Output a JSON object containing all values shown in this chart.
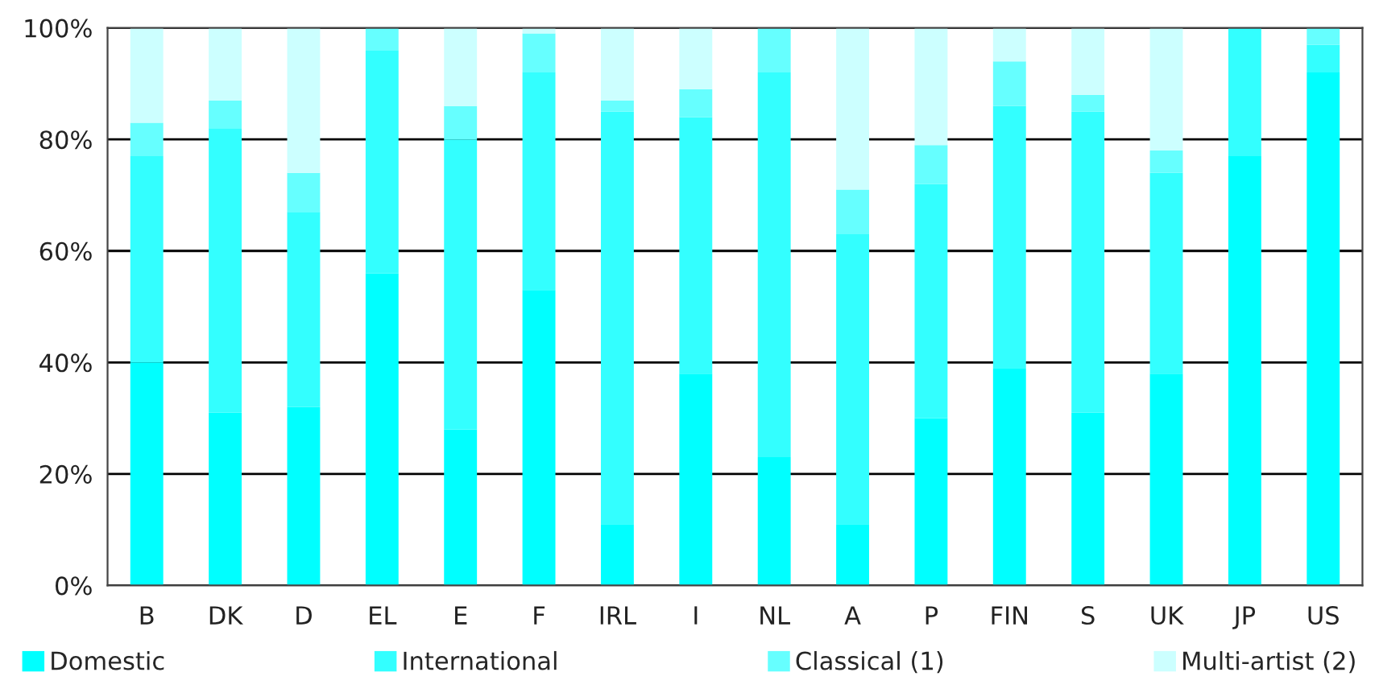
{
  "chart_data": {
    "type": "bar",
    "stacked": true,
    "categories": [
      "B",
      "DK",
      "D",
      "EL",
      "E",
      "F",
      "IRL",
      "I",
      "NL",
      "A",
      "P",
      "FIN",
      "S",
      "UK",
      "JP",
      "US"
    ],
    "series": [
      {
        "name": "Domestic",
        "color": "#00ffff",
        "values": [
          40,
          31,
          32,
          56,
          28,
          53,
          11,
          38,
          23,
          11,
          30,
          39,
          31,
          38,
          77,
          92
        ]
      },
      {
        "name": "International",
        "color": "#33ffff",
        "values": [
          37,
          51,
          35,
          40,
          52,
          39,
          74,
          46,
          69,
          52,
          42,
          47,
          54,
          36,
          23,
          5
        ]
      },
      {
        "name": "Classical (1)",
        "color": "#66ffff",
        "values": [
          6,
          5,
          7,
          4,
          6,
          7,
          2,
          5,
          8,
          8,
          7,
          8,
          3,
          4,
          0,
          3
        ]
      },
      {
        "name": "Multi-artist (2)",
        "color": "#ccffff",
        "values": [
          17,
          13,
          26,
          0,
          14,
          1,
          13,
          11,
          0,
          29,
          21,
          6,
          12,
          22,
          0,
          0
        ]
      }
    ],
    "ylim": [
      0,
      100
    ],
    "yticks": [
      {
        "value": 0,
        "label": "0%"
      },
      {
        "value": 20,
        "label": "20%"
      },
      {
        "value": 40,
        "label": "40%"
      },
      {
        "value": 60,
        "label": "60%"
      },
      {
        "value": 80,
        "label": "80%"
      },
      {
        "value": 100,
        "label": "100%"
      }
    ],
    "grid": "y",
    "legend": "bottom"
  }
}
